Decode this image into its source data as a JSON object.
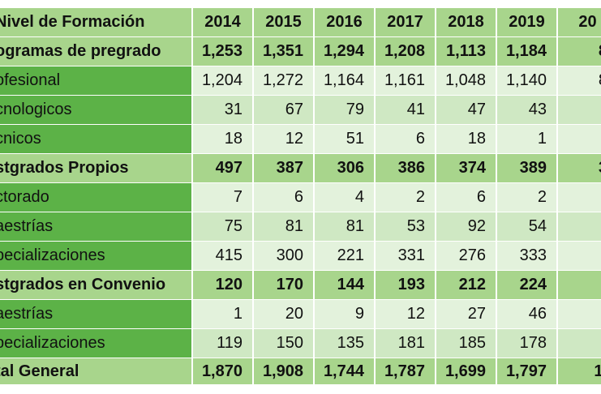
{
  "table": {
    "header": {
      "label": "Nivel de Formación",
      "years": [
        "2014",
        "2015",
        "2016",
        "2017",
        "2018",
        "2019",
        "20"
      ]
    },
    "rows": [
      {
        "label": "ogramas de pregrado",
        "type": "group",
        "values": [
          "1,253",
          "1,351",
          "1,294",
          "1,208",
          "1,113",
          "1,184",
          "8"
        ]
      },
      {
        "label": "ofesional",
        "type": "item",
        "values": [
          "1,204",
          "1,272",
          "1,164",
          "1,161",
          "1,048",
          "1,140",
          "8"
        ]
      },
      {
        "label": "cnologicos",
        "type": "item",
        "values": [
          "31",
          "67",
          "79",
          "41",
          "47",
          "43",
          ""
        ]
      },
      {
        "label": "cnicos",
        "type": "item",
        "values": [
          "18",
          "12",
          "51",
          "6",
          "18",
          "1",
          ""
        ]
      },
      {
        "label": "stgrados Propios",
        "type": "group",
        "values": [
          "497",
          "387",
          "306",
          "386",
          "374",
          "389",
          "3"
        ]
      },
      {
        "label": "ctorado",
        "type": "item",
        "values": [
          "7",
          "6",
          "4",
          "2",
          "6",
          "2",
          ""
        ]
      },
      {
        "label": "aestrías",
        "type": "item",
        "values": [
          "75",
          "81",
          "81",
          "53",
          "92",
          "54",
          ""
        ]
      },
      {
        "label": "pecializaciones",
        "type": "item",
        "values": [
          "415",
          "300",
          "221",
          "331",
          "276",
          "333",
          ""
        ]
      },
      {
        "label": "stgrados en Convenio",
        "type": "group",
        "values": [
          "120",
          "170",
          "144",
          "193",
          "212",
          "224",
          ""
        ]
      },
      {
        "label": "aestrías",
        "type": "item",
        "values": [
          "1",
          "20",
          "9",
          "12",
          "27",
          "46",
          ""
        ]
      },
      {
        "label": "pecializaciones",
        "type": "item",
        "values": [
          "119",
          "150",
          "135",
          "181",
          "185",
          "178",
          ""
        ]
      },
      {
        "label": "tal General",
        "type": "total",
        "values": [
          "1,870",
          "1,908",
          "1,744",
          "1,787",
          "1,699",
          "1,797",
          "1,"
        ]
      }
    ]
  },
  "colors": {
    "header_bg": "#a8d58c",
    "group_bg": "#a8d58c",
    "item_label_bg": "#5cb247",
    "item_value_light": "#e3f2dc",
    "item_value_mid": "#cfe8c3",
    "total_bg": "#a8d58c"
  }
}
